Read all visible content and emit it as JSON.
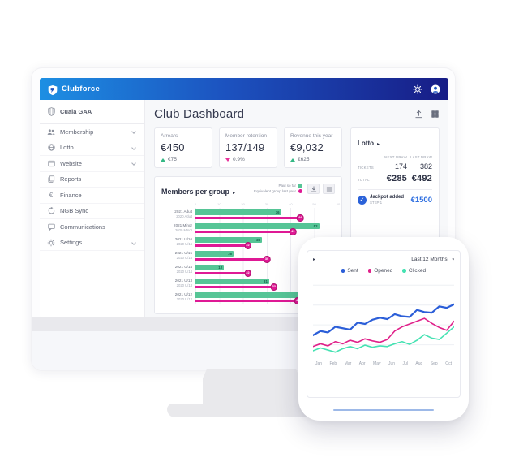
{
  "brand": {
    "name": "Clubforce"
  },
  "topbar": {
    "icons": [
      "settings-icon",
      "account-icon"
    ]
  },
  "sidebar": {
    "club_name": "Cuala GAA",
    "items": [
      {
        "label": "Membership",
        "icon": "people-icon",
        "chevron": true
      },
      {
        "label": "Lotto",
        "icon": "globe-icon",
        "chevron": true
      },
      {
        "label": "Website",
        "icon": "browser-icon",
        "chevron": true
      },
      {
        "label": "Reports",
        "icon": "reports-icon",
        "chevron": false
      },
      {
        "label": "Finance",
        "icon": "euro-icon",
        "chevron": false
      },
      {
        "label": "NGB Sync",
        "icon": "sync-icon",
        "chevron": false
      },
      {
        "label": "Communications",
        "icon": "chat-icon",
        "chevron": false
      },
      {
        "label": "Settings",
        "icon": "gear-icon",
        "chevron": true
      }
    ]
  },
  "main": {
    "title": "Club Dashboard"
  },
  "stats": [
    {
      "label": "Arrears",
      "value": "€450",
      "delta": "€75",
      "direction": "up"
    },
    {
      "label": "Member retention",
      "value": "137/149",
      "delta": "0.9%",
      "direction": "down"
    },
    {
      "label": "Revenue this year",
      "value": "€9,032",
      "delta": "€625",
      "direction": "up"
    }
  ],
  "lotto": {
    "title": "Lotto",
    "columns": [
      "NEXT DRAW",
      "LAST DRAW"
    ],
    "rows": [
      {
        "label": "TICKETS",
        "next": "174",
        "last": "382"
      },
      {
        "label": "TOTAL",
        "next": "€285",
        "last": "€492"
      }
    ],
    "jackpot": {
      "label": "Jackpot added",
      "step": "STEP 1",
      "amount": "€1500"
    }
  },
  "phone": {
    "period": "Last 12 Months"
  },
  "chart_data": [
    {
      "type": "bar",
      "title": "Members per group",
      "orientation": "horizontal",
      "legend": [
        {
          "name": "Paid so far",
          "color": "#56c596",
          "shape": "square"
        },
        {
          "name": "Equivalent group last year",
          "color": "#df1995",
          "shape": "circle"
        }
      ],
      "categories": [
        "2021 Adult",
        "2021 Minor",
        "2021 U/16",
        "2021 U/15",
        "2021 U/14",
        "2021 U/13",
        "2021 U/12"
      ],
      "compare_categories": [
        "2020 Adult",
        "2020 Minor",
        "2020 U/16",
        "2020 U/15",
        "2020 U/14",
        "2020 U/13",
        "2020 U/12"
      ],
      "series": [
        {
          "name": "Paid so far",
          "values": [
            36,
            52,
            28,
            16,
            12,
            31,
            48
          ]
        },
        {
          "name": "Equivalent group last year",
          "values": [
            44,
            41,
            22,
            30,
            22,
            33,
            43
          ]
        }
      ],
      "xlim": [
        0,
        60
      ],
      "ticks": [
        0,
        10,
        20,
        30,
        40,
        50,
        60
      ],
      "grid": "vertical"
    },
    {
      "type": "line",
      "period_selector": "Last 12 Months",
      "x": [
        "Jan",
        "Feb",
        "Mar",
        "Apr",
        "May",
        "Jun",
        "Jul",
        "Aug",
        "Sep",
        "Oct"
      ],
      "ylim": [
        0,
        100
      ],
      "grid": "horizontal",
      "legend_position": "top",
      "series": [
        {
          "name": "Sent",
          "color": "#2b5ed8",
          "values": [
            30,
            36,
            34,
            42,
            40,
            38,
            48,
            46,
            52,
            55,
            53,
            60,
            57,
            56,
            66,
            63,
            62,
            71,
            69,
            74
          ]
        },
        {
          "name": "Opened",
          "color": "#e0218a",
          "values": [
            14,
            18,
            15,
            21,
            18,
            23,
            20,
            25,
            22,
            20,
            24,
            36,
            42,
            46,
            50,
            54,
            47,
            41,
            37,
            50
          ]
        },
        {
          "name": "Clicked",
          "color": "#45e2b2",
          "values": [
            8,
            12,
            9,
            6,
            11,
            14,
            11,
            16,
            13,
            15,
            14,
            18,
            21,
            17,
            23,
            31,
            26,
            24,
            33,
            42
          ]
        }
      ]
    }
  ]
}
